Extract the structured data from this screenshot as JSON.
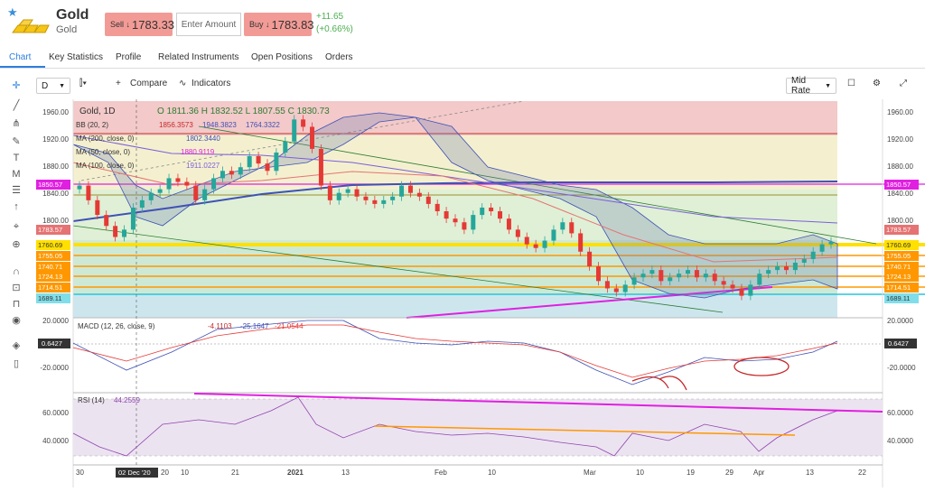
{
  "instrument": {
    "name": "Gold",
    "subtitle": "Gold"
  },
  "sell": {
    "label": "Sell",
    "arrow": "↓",
    "price": "1783.33"
  },
  "buy": {
    "label": "Buy",
    "arrow": "↓",
    "price": "1783.83"
  },
  "amount_placeholder": "Enter Amount",
  "change": {
    "abs": "+11.65",
    "pct": "(+0.66%)"
  },
  "tabs": [
    "Chart",
    "Key Statistics",
    "Profile",
    "Related Instruments",
    "Open Positions",
    "Orders"
  ],
  "toolbar": {
    "interval": "D",
    "compare": "Compare",
    "indicators": "Indicators",
    "rate": "Mid Rate"
  },
  "legend": {
    "title": "Gold, 1D",
    "o": "1811.36",
    "h": "1832.52",
    "l": "1807.55",
    "c": "1830.73",
    "bb": "BB (20, 2)",
    "bb_v": [
      "1856.3573",
      "1948.3823",
      "1764.3322"
    ],
    "ma200": "MA (200, close, 0)",
    "ma200_v": "1802.3440",
    "ma50": "MA (50, close, 0)",
    "ma50_v": "1880.9119",
    "ma100": "MA (100, close, 0)",
    "ma100_v": "1911.0227"
  },
  "macd": {
    "label": "MACD (12, 26, close, 9)",
    "v": [
      "-4.1103",
      "-25.1647",
      "-21.0544"
    ],
    "badge": "0.6427",
    "ticks": [
      "20.0000",
      "-20.0000"
    ]
  },
  "rsi": {
    "label": "RSI (14)",
    "v": "44.2559",
    "ticks": [
      "60.0000",
      "40.0000"
    ]
  },
  "price_axis": [
    "1960.00",
    "1920.00",
    "1880.00",
    "1840.00",
    "1800.00"
  ],
  "price_labels": {
    "left": [
      "1850.57",
      "1783.57",
      "1760.69",
      "1755.05",
      "1740.71",
      "1724.13",
      "1714.51",
      "1689.11"
    ],
    "right": [
      "1850.57",
      "1783.57",
      "1760.69",
      "1755.05",
      "1740.71",
      "1724.13",
      "1714.51",
      "1689.11"
    ]
  },
  "time_axis": [
    "30",
    "02 Dec '20",
    "20",
    "10",
    "21",
    "2021",
    "13",
    "Feb",
    "10",
    "Mar",
    "10",
    "19",
    "29",
    "Apr",
    "13",
    "22"
  ],
  "colors": {
    "up": "#26a69a",
    "down": "#e53935",
    "bb": "#3f51b5",
    "magenta": "#e020e0",
    "orange": "#ff9800",
    "yellow": "#ffeb3b"
  },
  "chart_data": {
    "type": "line",
    "title": "Gold, 1D",
    "ylim": [
      1680,
      1975
    ],
    "series": [
      {
        "name": "Gold close",
        "values": [
          1860,
          1840,
          1820,
          1805,
          1790,
          1800,
          1830,
          1840,
          1850,
          1855,
          1870,
          1865,
          1860,
          1840,
          1855,
          1870,
          1880,
          1875,
          1885,
          1900,
          1890,
          1880,
          1905,
          1920,
          1950,
          1940,
          1910,
          1860,
          1840,
          1850,
          1855,
          1845,
          1840,
          1835,
          1840,
          1845,
          1860,
          1850,
          1845,
          1835,
          1825,
          1815,
          1810,
          1800,
          1820,
          1830,
          1825,
          1815,
          1800,
          1790,
          1780,
          1775,
          1785,
          1800,
          1810,
          1795,
          1770,
          1750,
          1730,
          1720,
          1715,
          1725,
          1735,
          1740,
          1745,
          1730,
          1735,
          1740,
          1745,
          1735,
          1740,
          1730,
          1725,
          1720,
          1710,
          1725,
          1740,
          1745,
          1750,
          1745,
          1755,
          1760,
          1770,
          1780,
          1783.57
        ]
      }
    ]
  }
}
